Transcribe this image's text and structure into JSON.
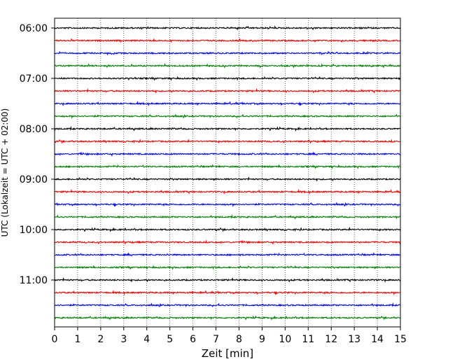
{
  "chart_data": {
    "type": "line",
    "title": "",
    "xlabel": "Zeit  [min]",
    "ylabel": "UTC (Lokalzeit = UTC + 02:00)",
    "xlim": [
      0,
      15
    ],
    "x_ticks": [
      0,
      1,
      2,
      3,
      4,
      5,
      6,
      7,
      8,
      9,
      10,
      11,
      12,
      13,
      14,
      15
    ],
    "y_tick_labels": [
      "06:00",
      "07:00",
      "08:00",
      "09:00",
      "10:00",
      "11:00"
    ],
    "grid": "vertical dotted",
    "trace_interval_minutes": 15,
    "start_time": "06:00",
    "end_time": "11:45",
    "trace_count": 24,
    "trace_colors": [
      "#000000",
      "#ff0000",
      "#0000ff",
      "#008000"
    ]
  }
}
